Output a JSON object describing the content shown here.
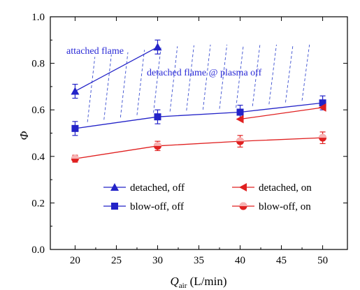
{
  "chart_data": {
    "type": "line",
    "xlabel": "Q_air (L/min)",
    "ylabel": "Φ",
    "xlim": [
      17,
      53
    ],
    "ylim": [
      0.0,
      1.0
    ],
    "x_ticks": [
      "20",
      "25",
      "30",
      "35",
      "40",
      "45",
      "50"
    ],
    "y_ticks": [
      "0.0",
      "0.2",
      "0.4",
      "0.6",
      "0.8",
      "1.0"
    ],
    "legend_placement": "lower-right",
    "colors": {
      "blue": "#2323c8",
      "red": "#e02020",
      "hatch": "#3b4fd0"
    },
    "series": [
      {
        "name": "detached, off",
        "color": "#2323c8",
        "marker": "triangle-up",
        "x": [
          20,
          30
        ],
        "y": [
          0.68,
          0.87
        ],
        "err": [
          0.03,
          0.03
        ]
      },
      {
        "name": "blow-off, off",
        "color": "#2323c8",
        "marker": "square",
        "x": [
          20,
          30,
          40,
          50
        ],
        "y": [
          0.52,
          0.57,
          0.59,
          0.63
        ],
        "err": [
          0.03,
          0.03,
          0.03,
          0.03
        ]
      },
      {
        "name": "detached, on",
        "color": "#e02020",
        "marker": "triangle-left",
        "x": [
          40,
          50
        ],
        "y": [
          0.56,
          0.61
        ],
        "err": [
          0.0,
          0.0
        ]
      },
      {
        "name": "blow-off, on",
        "color": "#e02020",
        "marker": "circle",
        "x": [
          20,
          30,
          40,
          50
        ],
        "y": [
          0.39,
          0.445,
          0.465,
          0.48
        ],
        "err": [
          0.015,
          0.02,
          0.025,
          0.025
        ]
      }
    ],
    "annotations": [
      "attached flame",
      "detached flame @ plasma off"
    ]
  }
}
